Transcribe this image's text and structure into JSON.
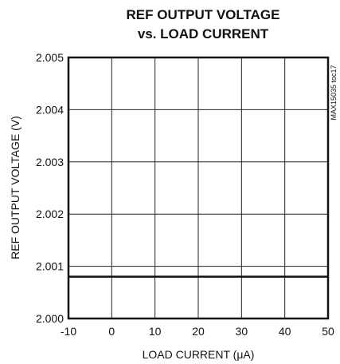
{
  "chart_data": {
    "type": "line",
    "title": [
      "REF OUTPUT VOLTAGE",
      "vs. LOAD CURRENT"
    ],
    "xlabel": "LOAD CURRENT (μA)",
    "ylabel": "REF OUTPUT VOLTAGE (V)",
    "xlim": [
      -10,
      50
    ],
    "ylim": [
      2.0,
      2.005
    ],
    "xticks": [
      -10,
      0,
      10,
      20,
      30,
      40,
      50
    ],
    "xtick_labels": [
      "-10",
      "0",
      "10",
      "20",
      "30",
      "40",
      "50"
    ],
    "yticks": [
      2.0,
      2.001,
      2.002,
      2.003,
      2.004,
      2.005
    ],
    "ytick_labels": [
      "2.000",
      "2.001",
      "2.002",
      "2.003",
      "2.004",
      "2.005"
    ],
    "grid": true,
    "annotation": "MAX15035 toc17",
    "series": [
      {
        "x": [
          -10,
          50
        ],
        "y": [
          2.0008,
          2.0008
        ]
      }
    ]
  }
}
